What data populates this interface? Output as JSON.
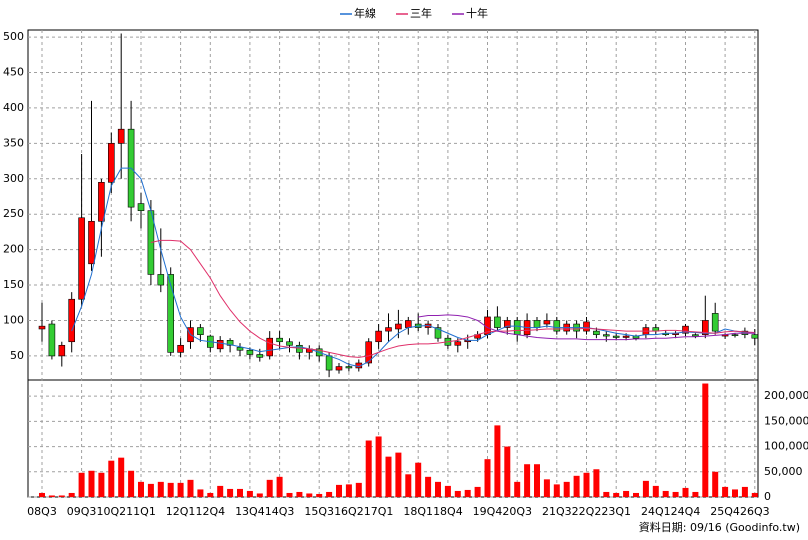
{
  "chart_data": [
    {
      "type": "candlestick",
      "categories": [
        "08Q3",
        null,
        null,
        null,
        "09Q3",
        null,
        null,
        "10Q2",
        null,
        null,
        "11Q1",
        null,
        null,
        null,
        "12Q1",
        null,
        null,
        "12Q4",
        null,
        null,
        null,
        "13Q4",
        null,
        null,
        "14Q3",
        null,
        null,
        null,
        "15Q3",
        null,
        null,
        "16Q2",
        null,
        null,
        "17Q1",
        null,
        null,
        null,
        "18Q1",
        null,
        null,
        "18Q4",
        null,
        null,
        null,
        "19Q4",
        null,
        null,
        "20Q3",
        null,
        null,
        null,
        "21Q3",
        null,
        null,
        "22Q2",
        null,
        null,
        "23Q1",
        null,
        null,
        null,
        "24Q1",
        null,
        null,
        "24Q4",
        null,
        null,
        null,
        "25Q4",
        null,
        null,
        "26Q3"
      ],
      "open": [
        88,
        95,
        50,
        70,
        130,
        180,
        240,
        295,
        350,
        370,
        265,
        255,
        165,
        165,
        55,
        70,
        90,
        78,
        60,
        72,
        62,
        58,
        52,
        50,
        75,
        70,
        65,
        55,
        60,
        50,
        30,
        35,
        33,
        40,
        70,
        85,
        88,
        90,
        95,
        90,
        90,
        75,
        65,
        70,
        75,
        80,
        105,
        90,
        100,
        80,
        100,
        95,
        100,
        85,
        95,
        85,
        85,
        80,
        78,
        76,
        78,
        80,
        90,
        82,
        80,
        82,
        80,
        80,
        110,
        78,
        80,
        85,
        80
      ],
      "high": [
        125,
        100,
        70,
        140,
        335,
        410,
        300,
        365,
        505,
        410,
        280,
        270,
        230,
        175,
        75,
        100,
        95,
        80,
        78,
        75,
        68,
        62,
        60,
        85,
        85,
        75,
        70,
        65,
        65,
        55,
        40,
        40,
        45,
        75,
        95,
        110,
        115,
        105,
        110,
        100,
        95,
        80,
        75,
        80,
        85,
        115,
        120,
        105,
        105,
        110,
        105,
        110,
        105,
        100,
        100,
        105,
        90,
        85,
        82,
        82,
        80,
        95,
        95,
        86,
        85,
        95,
        82,
        135,
        125,
        82,
        82,
        90,
        88
      ],
      "low": [
        70,
        45,
        35,
        55,
        120,
        170,
        190,
        280,
        300,
        240,
        230,
        150,
        140,
        50,
        48,
        60,
        70,
        55,
        55,
        55,
        50,
        45,
        42,
        45,
        60,
        55,
        45,
        45,
        42,
        20,
        25,
        28,
        28,
        35,
        60,
        70,
        75,
        80,
        85,
        80,
        70,
        60,
        55,
        60,
        70,
        75,
        85,
        80,
        70,
        75,
        85,
        90,
        80,
        80,
        75,
        80,
        75,
        70,
        72,
        72,
        72,
        75,
        80,
        78,
        75,
        78,
        75,
        75,
        80,
        74,
        76,
        75,
        65
      ],
      "close": [
        92,
        50,
        65,
        130,
        245,
        240,
        295,
        350,
        370,
        260,
        255,
        165,
        150,
        55,
        65,
        90,
        80,
        62,
        72,
        65,
        58,
        52,
        48,
        75,
        70,
        65,
        55,
        60,
        50,
        30,
        35,
        33,
        40,
        70,
        85,
        90,
        95,
        100,
        90,
        95,
        75,
        65,
        70,
        72,
        80,
        105,
        90,
        100,
        80,
        100,
        90,
        100,
        85,
        95,
        85,
        98,
        80,
        78,
        76,
        78,
        75,
        90,
        85,
        80,
        82,
        92,
        78,
        100,
        85,
        80,
        79,
        80,
        75
      ],
      "up_color": "#ff0000",
      "down_color": "#33cc33",
      "ylim": [
        16,
        510
      ],
      "yticks": [
        50,
        100,
        150,
        200,
        250,
        300,
        350,
        400,
        450,
        500
      ],
      "grid": true,
      "legend": "top",
      "series": [
        {
          "name": "年線",
          "color": "#1f6fd0",
          "values": [
            null,
            null,
            null,
            85,
            120,
            165,
            230,
            290,
            315,
            315,
            300,
            255,
            200,
            150,
            105,
            80,
            72,
            70,
            68,
            66,
            63,
            60,
            56,
            58,
            60,
            62,
            63,
            60,
            55,
            50,
            45,
            38,
            35,
            42,
            55,
            70,
            82,
            90,
            92,
            93,
            88,
            82,
            76,
            72,
            72,
            80,
            86,
            92,
            92,
            90,
            90,
            92,
            90,
            90,
            90,
            90,
            88,
            85,
            82,
            80,
            78,
            80,
            80,
            82,
            82,
            84,
            83,
            82,
            82,
            88,
            85,
            83,
            82
          ]
        },
        {
          "name": "三年",
          "color": "#e0306a",
          "values": [
            null,
            null,
            null,
            null,
            null,
            null,
            null,
            null,
            null,
            null,
            null,
            210,
            213,
            213,
            212,
            200,
            180,
            160,
            135,
            115,
            98,
            85,
            75,
            68,
            64,
            62,
            61,
            60,
            58,
            55,
            52,
            49,
            48,
            50,
            55,
            60,
            64,
            66,
            67,
            67,
            68,
            70,
            72,
            76,
            80,
            84,
            85,
            85,
            86,
            86,
            87,
            88,
            88,
            88,
            88,
            89,
            88,
            87,
            86,
            85,
            85,
            85,
            85,
            86,
            86,
            85,
            84,
            83,
            82,
            84,
            85,
            84,
            83
          ]
        },
        {
          "name": "十年",
          "color": "#9020b0",
          "values": [
            null,
            null,
            null,
            null,
            null,
            null,
            null,
            null,
            null,
            null,
            null,
            null,
            null,
            null,
            null,
            null,
            null,
            null,
            null,
            null,
            null,
            null,
            null,
            null,
            null,
            null,
            null,
            null,
            null,
            null,
            null,
            null,
            null,
            null,
            null,
            null,
            null,
            null,
            105,
            107,
            107,
            108,
            107,
            105,
            100,
            90,
            85,
            82,
            80,
            78,
            76,
            75,
            74,
            74,
            74,
            73,
            73,
            73,
            73,
            73,
            74,
            74,
            75,
            75,
            76,
            77,
            77,
            78,
            79,
            80,
            82,
            82,
            82
          ]
        }
      ]
    },
    {
      "type": "bar",
      "color": "#ff0000",
      "values": [
        8000,
        3000,
        3000,
        8000,
        48000,
        52000,
        48000,
        72000,
        78000,
        52000,
        30000,
        26000,
        30000,
        28000,
        28000,
        34000,
        15000,
        8000,
        22000,
        16000,
        16000,
        12000,
        7000,
        34000,
        40000,
        8000,
        10000,
        7000,
        6000,
        10000,
        24000,
        25000,
        28000,
        112000,
        120000,
        80000,
        88000,
        45000,
        68000,
        40000,
        30000,
        22000,
        12000,
        14000,
        20000,
        75000,
        142000,
        100000,
        30000,
        65000,
        65000,
        35000,
        25000,
        30000,
        42000,
        48000,
        55000,
        10000,
        8000,
        12000,
        8000,
        32000,
        22000,
        12000,
        10000,
        18000,
        10000,
        225000,
        50000,
        20000,
        15000,
        20000,
        8000
      ],
      "axis": "y2",
      "y2lim": [
        0,
        232000
      ],
      "y2ticks": [
        0,
        {
          "value": 50000,
          "label": "50,000"
        },
        {
          "value": 100000,
          "label": "100,000"
        },
        {
          "value": 150000,
          "label": "150,000"
        },
        {
          "value": 200000,
          "label": "200,000"
        }
      ],
      "annotation": "資料日期: 09/16  (Goodinfo.tw)"
    }
  ]
}
